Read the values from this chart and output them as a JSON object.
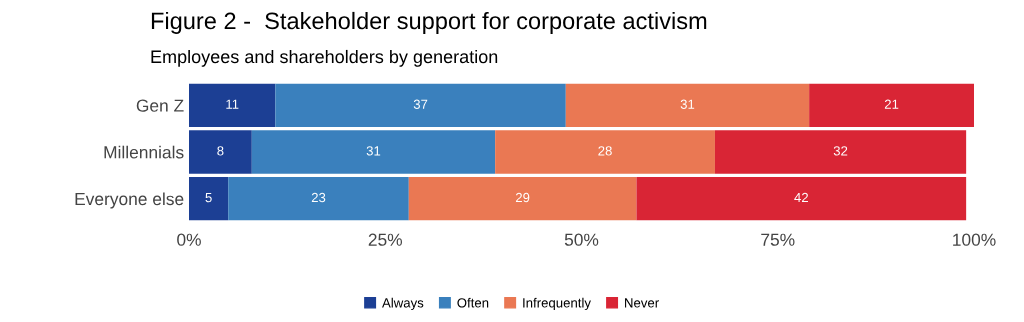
{
  "chart_data": {
    "type": "bar",
    "orientation": "horizontal",
    "stacked": true,
    "title": "Figure 2 -  Stakeholder support for corporate activism",
    "subtitle": "Employees and shareholders by generation",
    "categories": [
      "Gen Z",
      "Millennials",
      "Everyone else"
    ],
    "series": [
      {
        "name": "Always",
        "color": "#1c3f94",
        "values": [
          11,
          8,
          5
        ]
      },
      {
        "name": "Often",
        "color": "#3a80bd",
        "values": [
          37,
          31,
          23
        ]
      },
      {
        "name": "Infrequently",
        "color": "#ea7853",
        "values": [
          31,
          28,
          29
        ]
      },
      {
        "name": "Never",
        "color": "#d92535",
        "values": [
          21,
          32,
          42
        ]
      }
    ],
    "xlim": [
      0,
      100
    ],
    "xticks": [
      {
        "value": 0,
        "label": "0%"
      },
      {
        "value": 25,
        "label": "25%"
      },
      {
        "value": 50,
        "label": "50%"
      },
      {
        "value": 75,
        "label": "75%"
      },
      {
        "value": 100,
        "label": "100%"
      }
    ],
    "data_labels": true,
    "legend": "bottom",
    "grid": false
  }
}
